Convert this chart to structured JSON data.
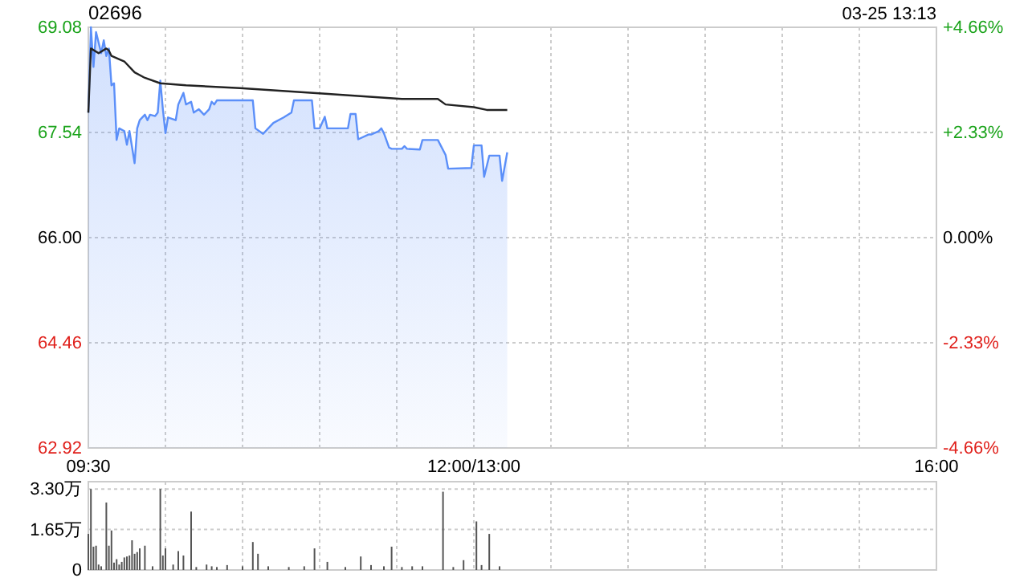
{
  "chart_data": [
    {
      "type": "area",
      "title": "02696",
      "annotations": [
        "03-25 13:13"
      ],
      "categories": [
        "09:30",
        null,
        null,
        null,
        null,
        null,
        null,
        null,
        null,
        null,
        null,
        null,
        null,
        null,
        null,
        null,
        null,
        null,
        null,
        null,
        null,
        null,
        null,
        null,
        null,
        null,
        null,
        null,
        null,
        null,
        null,
        null,
        null,
        null,
        null,
        null,
        null,
        null,
        null,
        null,
        null,
        null,
        null,
        null,
        null,
        null,
        null,
        null,
        null,
        null,
        null,
        null,
        null,
        null,
        null,
        null,
        null,
        null,
        null,
        null,
        null,
        null,
        null,
        null,
        null,
        null,
        null,
        null,
        null,
        null,
        null,
        null,
        null,
        null,
        null,
        null,
        null,
        null,
        null,
        null,
        null,
        null,
        null,
        null,
        null,
        null,
        null,
        null,
        null,
        null,
        null,
        null,
        null,
        null,
        null,
        null,
        null,
        null,
        null,
        null,
        null,
        null,
        null,
        null,
        null,
        null,
        null,
        null,
        null,
        null,
        null,
        null,
        null,
        null,
        null,
        null,
        null,
        null,
        null,
        null,
        null,
        null,
        null,
        null,
        null,
        null,
        null,
        null,
        null,
        null,
        null,
        null,
        null,
        null,
        null,
        null,
        null,
        null,
        null,
        null,
        null,
        null,
        null,
        null,
        null,
        null,
        null,
        null,
        null,
        null,
        "12:00/13:00",
        null,
        null,
        null,
        null,
        null,
        null,
        null,
        null,
        null,
        null,
        null,
        null,
        null,
        null,
        null,
        null,
        null,
        null,
        null,
        null,
        null,
        null,
        null,
        null,
        null,
        null,
        null,
        null,
        null,
        null,
        null,
        null,
        null,
        null,
        null,
        null,
        null,
        null,
        null,
        null,
        null,
        null,
        null,
        null,
        null,
        null,
        null,
        null,
        null,
        null,
        null,
        null,
        null,
        null,
        null,
        null,
        null,
        null,
        null,
        null,
        null,
        null,
        null,
        null,
        null,
        null,
        null,
        null,
        null,
        null,
        null,
        null,
        null,
        null,
        null,
        null,
        null,
        null,
        null,
        null,
        null,
        null,
        null,
        null,
        null,
        null,
        null,
        null,
        null,
        null,
        null,
        null,
        null,
        null,
        null,
        null,
        null,
        null,
        null,
        null,
        null,
        null,
        null,
        null,
        null,
        null,
        null,
        null,
        null,
        null,
        null,
        null,
        null,
        null,
        null,
        null,
        null,
        null,
        null,
        null,
        null,
        null,
        null,
        null,
        null,
        null,
        null,
        null,
        null,
        null,
        null,
        null,
        null,
        null,
        null,
        null,
        null,
        null,
        null,
        null,
        null,
        null,
        null,
        null,
        null,
        null,
        null,
        null,
        null,
        null,
        null,
        null,
        null,
        null,
        null,
        null,
        null,
        null,
        null,
        null,
        null,
        null,
        null,
        null,
        null,
        null,
        null,
        null,
        null,
        null,
        null,
        null,
        null,
        null,
        null,
        null,
        null,
        null,
        null,
        "16:00"
      ],
      "ylim": [
        62.92,
        69.08
      ],
      "yticks": [
        {
          "value": 62.92,
          "label": "62.92"
        },
        {
          "value": 64.46,
          "label": "64.46"
        },
        {
          "value": 66,
          "label": "66.00"
        },
        {
          "value": 67.54,
          "label": "67.54"
        },
        {
          "value": 69.08,
          "label": "69.08"
        }
      ],
      "y2lim": [
        -4.66,
        4.66
      ],
      "y2ticks": [
        {
          "value": -4.66,
          "label": "-4.66%"
        },
        {
          "value": -2.33,
          "label": "-2.33%"
        },
        {
          "value": 0,
          "label": "0.00%"
        },
        {
          "value": 2.33,
          "label": "+2.33%"
        },
        {
          "value": 4.66,
          "label": "+4.66%"
        }
      ],
      "grid": true,
      "series": [
        {
          "color": "#5b8ff9",
          "values": [
            67.83,
            69.08,
            68.5,
            69.01,
            null,
            68.7,
            68.89,
            68.66,
            68.77,
            68.23,
            68.26,
            67.43,
            67.6,
            null,
            67.56,
            67.36,
            67.56,
            null,
            67.09,
            67.6,
            67.72,
            null,
            67.8,
            67.72,
            67.8,
            null,
            67.78,
            67.83,
            68.3,
            67.88,
            67.53,
            67.76,
            null,
            null,
            67.72,
            67.95,
            null,
            68.12,
            67.95,
            null,
            67.99,
            67.83,
            null,
            67.88,
            null,
            67.8,
            null,
            67.88,
            67.99,
            67.95,
            68.01,
            null,
            null,
            null,
            null,
            null,
            null,
            null,
            null,
            null,
            null,
            null,
            null,
            null,
            68.01,
            67.6,
            null,
            null,
            67.52,
            null,
            67.6,
            null,
            67.68,
            null,
            null,
            null,
            67.76,
            null,
            null,
            67.83,
            68.01,
            null,
            null,
            null,
            null,
            null,
            null,
            68.01,
            67.6,
            null,
            67.6,
            null,
            67.77,
            67.6,
            null,
            null,
            null,
            null,
            null,
            null,
            null,
            67.6,
            67.81,
            null,
            67.81,
            67.44,
            null,
            null,
            null,
            67.51,
            67.51,
            null,
            null,
            67.56,
            67.6,
            67.53,
            null,
            67.32,
            67.3,
            null,
            null,
            null,
            67.3,
            67.34,
            67.3,
            null,
            null,
            null,
            null,
            67.29,
            67.43,
            null,
            null,
            null,
            null,
            null,
            67.43,
            null,
            null,
            67.21,
            67.01,
            null,
            null,
            null,
            null,
            null,
            null,
            null,
            null,
            67.02,
            67.35,
            null,
            null,
            67.35,
            66.89,
            null,
            67.2,
            null,
            null,
            null,
            67.2,
            66.83,
            null,
            67.25,
            null,
            null,
            null,
            null,
            null,
            null,
            null,
            null,
            null,
            null,
            null,
            null,
            null,
            null,
            null,
            null,
            null,
            null,
            null,
            null,
            null,
            null,
            null,
            null,
            null,
            null,
            null,
            null,
            null,
            null,
            null,
            null,
            null,
            null,
            null,
            null,
            null,
            null,
            null,
            null,
            null,
            null,
            null,
            null,
            null,
            null,
            null,
            null,
            null,
            null,
            null,
            null,
            null,
            null,
            null,
            null,
            null,
            null,
            null,
            null,
            null,
            null,
            null,
            null,
            null,
            null,
            null,
            null,
            null,
            null,
            null,
            null,
            null,
            null,
            null,
            null,
            null,
            null,
            null,
            null,
            null,
            null,
            null,
            null,
            null,
            null,
            null,
            null,
            null,
            null,
            null,
            null,
            null,
            null,
            null,
            null,
            null,
            null,
            null,
            null,
            null,
            null,
            null,
            null,
            null,
            null,
            null,
            null,
            null,
            null,
            null,
            null,
            null,
            null,
            null,
            null,
            null,
            null,
            null,
            null,
            null,
            null,
            null,
            null,
            null,
            null,
            null,
            null,
            null,
            null,
            null,
            null,
            null,
            null,
            null,
            null,
            null,
            null,
            null,
            null,
            null,
            null,
            null,
            null,
            null,
            null,
            null,
            null,
            null,
            null,
            null,
            null,
            null,
            null,
            null,
            null,
            null,
            null,
            null,
            null,
            null,
            null,
            null,
            null,
            null,
            null,
            null
          ]
        },
        {
          "type": "line",
          "color": "#222222",
          "values": [
            67.83,
            68.77,
            null,
            null,
            68.7,
            null,
            null,
            68.77,
            68.74,
            68.66,
            null,
            null,
            null,
            null,
            68.58,
            null,
            null,
            null,
            68.42,
            null,
            null,
            null,
            68.34,
            null,
            null,
            null,
            null,
            null,
            68.26,
            null,
            null,
            null,
            null,
            null,
            null,
            null,
            null,
            null,
            68.23,
            null,
            null,
            null,
            null,
            null,
            null,
            null,
            null,
            null,
            null,
            null,
            null,
            null,
            null,
            null,
            null,
            null,
            null,
            null,
            null,
            68.19,
            null,
            null,
            null,
            null,
            null,
            null,
            null,
            null,
            null,
            null,
            null,
            null,
            null,
            null,
            null,
            null,
            null,
            null,
            null,
            null,
            null,
            null,
            null,
            null,
            null,
            null,
            null,
            null,
            null,
            null,
            null,
            68.11,
            null,
            null,
            null,
            null,
            null,
            null,
            null,
            null,
            null,
            null,
            null,
            null,
            null,
            null,
            null,
            null,
            null,
            null,
            null,
            null,
            null,
            null,
            null,
            null,
            null,
            null,
            null,
            null,
            null,
            null,
            68.03,
            null,
            null,
            null,
            null,
            null,
            null,
            null,
            null,
            null,
            null,
            null,
            null,
            null,
            68.03,
            null,
            null,
            67.95,
            null,
            null,
            null,
            null,
            null,
            null,
            null,
            null,
            null,
            null,
            67.91,
            null,
            null,
            null,
            null,
            67.87,
            null,
            null,
            null,
            null,
            null,
            null,
            null,
            67.87,
            null,
            null,
            null,
            null,
            null,
            null,
            null,
            null,
            null,
            null,
            null,
            null,
            null,
            null,
            null,
            null,
            null,
            null,
            null,
            null,
            null,
            null,
            null,
            null,
            null,
            null,
            null,
            null,
            null,
            null,
            null,
            null,
            null,
            null,
            null,
            null,
            null,
            null,
            null,
            null,
            null,
            null,
            null,
            null,
            null,
            null,
            null,
            null,
            null,
            null,
            null,
            null,
            null,
            null,
            null,
            null,
            null,
            null,
            null,
            null,
            null,
            null,
            null,
            null,
            null,
            null,
            null,
            null,
            null,
            null,
            null,
            null,
            null,
            null,
            null,
            null,
            null,
            null,
            null,
            null,
            null,
            null,
            null,
            null,
            null,
            null,
            null,
            null,
            null,
            null,
            null,
            null,
            null,
            null,
            null,
            null,
            null,
            null,
            null,
            null,
            null,
            null,
            null,
            null,
            null,
            null,
            null,
            null,
            null,
            null,
            null,
            null,
            null,
            null,
            null,
            null,
            null,
            null,
            null,
            null,
            null,
            null,
            null,
            null,
            null,
            null,
            null,
            null,
            null,
            null,
            null,
            null,
            null,
            null,
            null,
            null,
            null,
            null,
            null,
            null,
            null,
            null,
            null,
            null,
            null,
            null,
            null,
            null,
            null,
            null,
            null,
            null,
            null,
            null,
            null,
            null,
            null,
            null,
            null,
            null,
            null,
            null,
            null,
            null,
            null,
            null,
            null
          ]
        }
      ]
    },
    {
      "type": "bar",
      "tick_labels": "y",
      "categories": [
        null,
        null,
        null,
        null,
        null,
        null,
        null,
        null,
        null,
        null,
        null,
        null,
        null,
        null,
        null,
        null,
        null,
        null,
        null,
        null,
        null,
        null,
        null,
        null,
        null,
        null,
        null,
        null,
        null,
        null,
        null,
        null,
        null,
        null,
        null,
        null,
        null,
        null,
        null,
        null,
        null,
        null,
        null,
        null,
        null,
        null,
        null,
        null,
        null,
        null,
        null,
        null,
        null,
        null,
        null,
        null,
        null,
        null,
        null,
        null,
        null,
        null,
        null,
        null,
        null,
        null,
        null,
        null,
        null,
        null,
        null,
        null,
        null,
        null,
        null,
        null,
        null,
        null,
        null,
        null,
        null,
        null,
        null,
        null,
        null,
        null,
        null,
        null,
        null,
        null,
        null,
        null,
        null,
        null,
        null,
        null,
        null,
        null,
        null,
        null,
        null,
        null,
        null,
        null,
        null,
        null,
        null,
        null,
        null,
        null,
        null,
        null,
        null,
        null,
        null,
        null,
        null,
        null,
        null,
        null,
        null,
        null,
        null,
        null,
        null,
        null,
        null,
        null,
        null,
        null,
        null,
        null,
        null,
        null,
        null,
        null,
        null,
        null,
        null,
        null,
        null,
        null,
        null,
        null,
        null,
        null,
        null,
        null,
        null,
        null,
        null,
        null,
        null,
        null,
        null,
        null,
        null,
        null,
        null,
        null,
        null,
        null,
        null,
        null,
        null,
        null,
        null,
        null,
        null,
        null,
        null,
        null,
        null,
        null,
        null,
        null,
        null,
        null,
        null,
        null,
        null,
        null,
        null,
        null,
        null,
        null,
        null,
        null,
        null,
        null,
        null,
        null,
        null,
        null,
        null,
        null,
        null,
        null,
        null,
        null,
        null,
        null,
        null,
        null,
        null,
        null,
        null,
        null,
        null,
        null,
        null,
        null,
        null,
        null,
        null,
        null,
        null,
        null,
        null,
        null,
        null,
        null,
        null,
        null,
        null,
        null,
        null,
        null,
        null,
        null,
        null,
        null,
        null,
        null,
        null,
        null,
        null,
        null,
        null,
        null,
        null,
        null,
        null,
        null,
        null,
        null,
        null,
        null,
        null,
        null,
        null,
        null,
        null,
        null,
        null,
        null,
        null,
        null,
        null,
        null,
        null,
        null,
        null,
        null,
        null,
        null,
        null,
        null,
        null,
        null,
        null,
        null,
        null,
        null,
        null,
        null,
        null,
        null,
        null,
        null,
        null,
        null,
        null,
        null,
        null,
        null,
        null,
        null,
        null,
        null,
        null,
        null,
        null,
        null,
        null,
        null,
        null,
        null,
        null,
        null,
        null,
        null,
        null,
        null,
        null,
        null,
        null,
        null,
        null,
        null,
        null,
        null,
        null,
        null,
        null,
        null,
        null,
        null,
        null,
        null,
        null,
        null,
        null,
        null,
        null,
        null,
        null,
        null,
        null,
        null,
        null
      ],
      "ylim": [
        0,
        3.6
      ],
      "yticks": [
        {
          "value": 0,
          "label": "0"
        },
        {
          "value": 1.65,
          "label": "1.65万"
        },
        {
          "value": 3.3,
          "label": "3.30万"
        }
      ],
      "grid": true,
      "color": "#555555",
      "values": [
        1.47,
        3.3,
        0.95,
        0.99,
        0.22,
        0.15,
        null,
        2.75,
        0.99,
        1.61,
        0.3,
        0.44,
        0.22,
        0.33,
        0.51,
        0.55,
        0.59,
        1.21,
        0.66,
        0.73,
        0.88,
        null,
        0.99,
        null,
        null,
        0.15,
        null,
        null,
        3.3,
        0.59,
        0.88,
        null,
        null,
        0.22,
        null,
        0.77,
        null,
        0.59,
        null,
        null,
        2.38,
        null,
        0.12,
        null,
        null,
        null,
        0.22,
        null,
        0.15,
        null,
        0.12,
        null,
        null,
        null,
        0.2,
        null,
        null,
        null,
        null,
        null,
        0.15,
        null,
        null,
        null,
        1.14,
        null,
        0.66,
        null,
        null,
        null,
        0.15,
        null,
        null,
        null,
        null,
        null,
        null,
        null,
        0.12,
        null,
        null,
        null,
        null,
        null,
        0.15,
        null,
        null,
        null,
        0.88,
        null,
        null,
        null,
        null,
        0.33,
        null,
        null,
        null,
        null,
        null,
        null,
        0.12,
        null,
        null,
        null,
        null,
        null,
        0.55,
        null,
        null,
        null,
        0.2,
        null,
        null,
        null,
        null,
        0.15,
        null,
        null,
        0.95,
        null,
        null,
        null,
        0.12,
        null,
        null,
        null,
        0.15,
        null,
        null,
        null,
        0.15,
        null,
        null,
        null,
        null,
        null,
        null,
        null,
        3.19,
        null,
        null,
        null,
        0.12,
        null,
        null,
        null,
        0.4,
        null,
        null,
        null,
        null,
        1.98,
        null,
        0.2,
        null,
        null,
        1.47,
        null,
        null,
        null,
        0.15,
        null,
        null,
        null,
        null,
        null,
        null,
        null,
        null,
        null,
        null,
        null,
        null,
        null,
        null,
        null,
        null,
        null,
        null,
        null,
        null,
        null,
        null,
        null,
        null,
        null,
        null,
        null,
        null,
        null,
        null,
        null,
        null,
        null,
        null,
        null,
        null,
        null,
        null,
        null,
        null,
        null,
        null,
        null,
        null,
        null,
        null,
        null,
        null,
        null,
        null,
        null,
        null,
        null,
        null,
        null,
        null,
        null,
        null,
        null,
        null,
        null,
        null,
        null,
        null,
        null,
        null,
        null,
        null,
        null,
        null,
        null,
        null,
        null,
        null,
        null,
        null,
        null,
        null,
        null,
        null,
        null,
        null,
        null,
        null,
        null,
        null,
        null,
        null,
        null,
        null,
        null,
        null,
        null,
        null,
        null,
        null,
        null,
        null,
        null,
        null,
        null,
        null,
        null,
        null,
        null,
        null,
        null,
        null,
        null,
        null,
        null,
        null,
        null,
        null,
        null,
        null,
        null,
        null,
        null,
        null,
        null,
        null,
        null,
        null,
        null,
        null,
        null,
        null,
        null,
        null,
        null,
        null,
        null,
        null,
        null,
        null,
        null,
        null,
        null,
        null,
        null,
        null,
        null,
        null,
        null,
        null,
        null,
        null,
        null,
        null,
        null,
        null,
        null,
        null,
        null,
        null,
        null,
        null,
        null,
        null,
        null,
        null,
        null,
        null,
        null,
        null,
        null,
        null,
        null,
        null
      ]
    }
  ]
}
